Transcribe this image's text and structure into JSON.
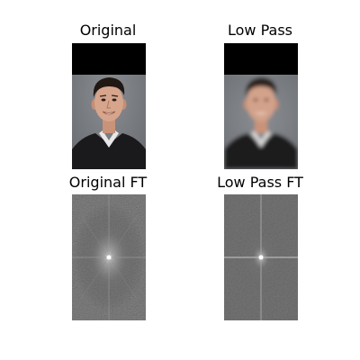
{
  "titles": {
    "original": "Original",
    "low_pass": "Low Pass",
    "original_ft": "Original FT",
    "low_pass_ft": "Low Pass FT"
  },
  "colors": {
    "background": "#ffffff",
    "image_band": "#000000",
    "photo_backdrop": "#7f8286",
    "spectrum_gray": "#5a5a5a"
  }
}
